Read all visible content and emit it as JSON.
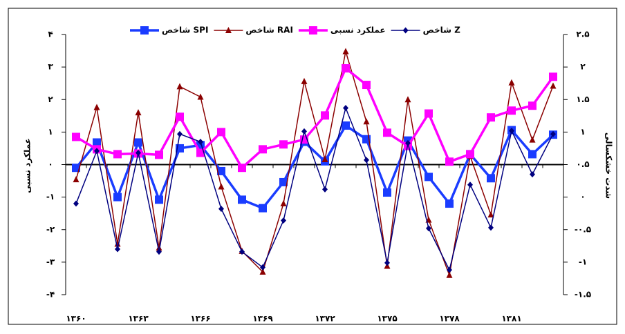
{
  "chart_data": {
    "type": "line",
    "categories": [
      "۱۳۶۰",
      null,
      null,
      "۱۳۶۳",
      null,
      null,
      "۱۳۶۶",
      null,
      null,
      "۱۳۶۹",
      null,
      null,
      "۱۳۷۲",
      null,
      null,
      "۱۳۷۵",
      null,
      null,
      "۱۳۷۸",
      null,
      null,
      "۱۳۸۱",
      null,
      null
    ],
    "ylabel": "عملکرد نسبی",
    "y2label": "شدت خشکسالی",
    "ylim": [
      -4,
      4
    ],
    "yticks": [
      {
        "value": 4,
        "label": "۴"
      },
      {
        "value": 3,
        "label": "۳"
      },
      {
        "value": 2,
        "label": "۲"
      },
      {
        "value": 1,
        "label": "۱"
      },
      {
        "value": 0,
        "label": "۰"
      },
      {
        "value": -1,
        "label": "-۱"
      },
      {
        "value": -2,
        "label": "-۲"
      },
      {
        "value": -3,
        "label": "-۳"
      },
      {
        "value": -4,
        "label": "-۴"
      }
    ],
    "y2lim": [
      -1.5,
      2.5
    ],
    "y2ticks": [
      {
        "value": 2.5,
        "label": "۲.۵"
      },
      {
        "value": 2,
        "label": "۲"
      },
      {
        "value": 1.5,
        "label": "۱.۵"
      },
      {
        "value": 1,
        "label": "۱"
      },
      {
        "value": 0.5,
        "label": "۰.۵"
      },
      {
        "value": 0,
        "label": "۰"
      },
      {
        "value": -0.5,
        "label": "-۰.۵"
      },
      {
        "value": -1,
        "label": "-۱"
      },
      {
        "value": -1.5,
        "label": "-۱.۵"
      }
    ],
    "legend": "top",
    "series": [
      {
        "name": "شاخص SPI",
        "color": "#1a3cff",
        "marker": "square",
        "axis": "y2",
        "values": [
          0.45,
          0.84,
          0,
          0.84,
          -0.04,
          0.75,
          0.8,
          0.4,
          -0.04,
          -0.17,
          0.23,
          0.85,
          0.55,
          1.1,
          0.89,
          0.07,
          0.87,
          0.31,
          -0.1,
          0.66,
          0.29,
          1.03,
          0.66,
          0.96
        ]
      },
      {
        "name": "شاخص RAI",
        "color": "#8b0000",
        "marker": "triangle",
        "axis": "y2",
        "values": [
          0.27,
          1.38,
          -0.72,
          1.3,
          -0.78,
          1.7,
          1.54,
          0.16,
          -0.83,
          -1.15,
          -0.1,
          1.78,
          0.58,
          2.24,
          1.16,
          -1.06,
          1.5,
          -0.35,
          -1.2,
          0.63,
          -0.27,
          1.76,
          0.88,
          1.71
        ]
      },
      {
        "name": "عملکرد نسبی",
        "color": "#ff00ff",
        "marker": "square",
        "values": [
          0.85,
          0.47,
          0.32,
          0.34,
          0.3,
          1.47,
          0.36,
          1.0,
          -0.1,
          0.47,
          0.62,
          0.77,
          1.51,
          2.96,
          2.45,
          0.98,
          0.57,
          1.57,
          0.09,
          0.32,
          1.45,
          1.66,
          1.81,
          2.7
        ]
      },
      {
        "name": "شاخص Z",
        "color": "#000080",
        "marker": "diamond",
        "axis": "y2",
        "values": [
          -0.1,
          0.71,
          -0.8,
          0.68,
          -0.84,
          0.97,
          0.85,
          -0.18,
          -0.84,
          -1.08,
          -0.36,
          1.01,
          0.12,
          1.37,
          0.57,
          -1.01,
          0.83,
          -0.48,
          -1.12,
          0.19,
          -0.47,
          1.02,
          0.35,
          0.97
        ]
      }
    ]
  }
}
